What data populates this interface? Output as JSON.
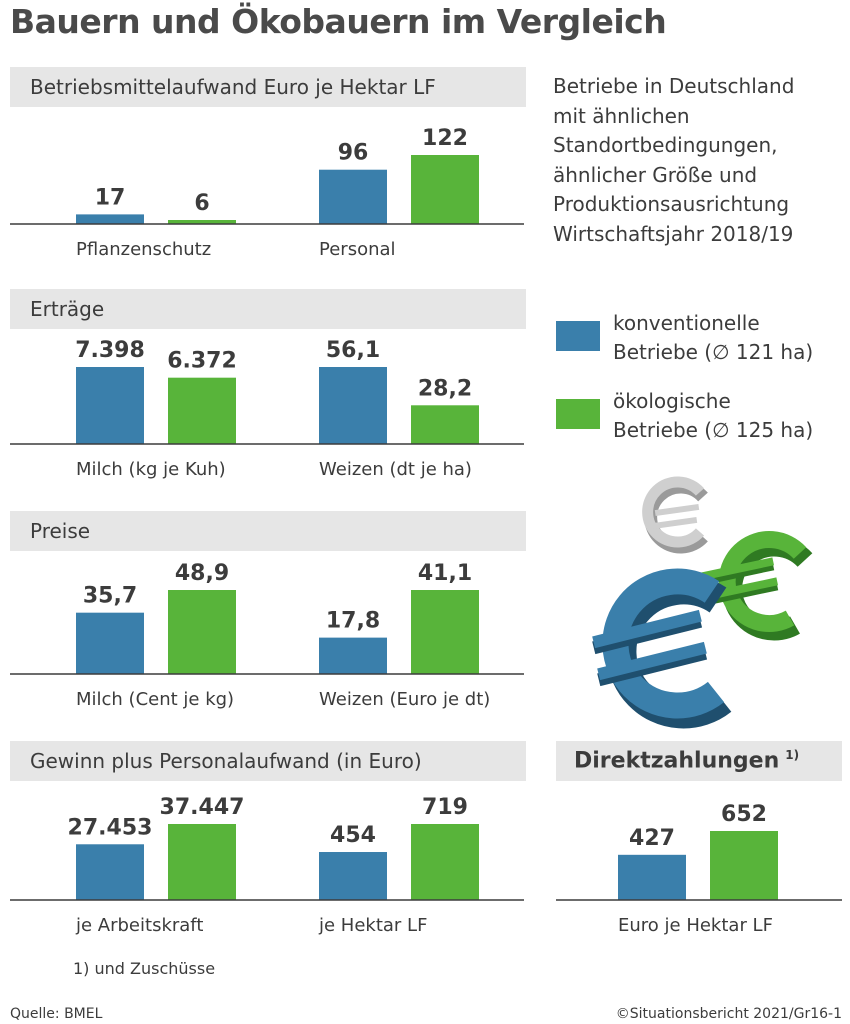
{
  "title": "Bauern und Ökobauern im Vergleich",
  "info_lines": [
    "Betriebe in Deutschland",
    "mit ähnlichen",
    "Standortbedingungen,",
    "ähnlicher Größe und",
    "Produktionsausrichtung",
    "Wirtschaftsjahr 2018/19"
  ],
  "legend": [
    {
      "label_line1": "konventionelle",
      "label_line2": "Betriebe (∅ 121 ha)",
      "color": "#3a7fab"
    },
    {
      "label_line1": "ökologische",
      "label_line2": "Betriebe (∅ 125 ha)",
      "color": "#58b43a"
    }
  ],
  "colors": {
    "conventional": "#3a7fab",
    "organic": "#58b43a"
  },
  "direkt_title": "Direktzahlungen",
  "direkt_sup": "1)",
  "footnote": "1) und Zuschüsse",
  "source": "Quelle: BMEL",
  "copyright": "©Situationsbericht 2021/Gr16-1",
  "chart_data": [
    {
      "type": "bar",
      "title": "Betriebsmittelaufwand Euro je Hektar LF",
      "series_names": [
        "konventionelle Betriebe",
        "ökologische Betriebe"
      ],
      "groups": [
        {
          "category": "Pflanzenschutz",
          "values": [
            17,
            6
          ],
          "labels": [
            "17",
            "6"
          ]
        },
        {
          "category": "Personal",
          "values": [
            96,
            122
          ],
          "labels": [
            "96",
            "122"
          ]
        }
      ]
    },
    {
      "type": "bar",
      "title": "Erträge",
      "series_names": [
        "konventionelle Betriebe",
        "ökologische Betriebe"
      ],
      "groups": [
        {
          "category": "Milch (kg je Kuh)",
          "values": [
            7398,
            6372
          ],
          "labels": [
            "7.398",
            "6.372"
          ]
        },
        {
          "category": "Weizen (dt je ha)",
          "values": [
            56.1,
            28.2
          ],
          "labels": [
            "56,1",
            "28,2"
          ]
        }
      ]
    },
    {
      "type": "bar",
      "title": "Preise",
      "series_names": [
        "konventionelle Betriebe",
        "ökologische Betriebe"
      ],
      "groups": [
        {
          "category": "Milch (Cent je kg)",
          "values": [
            35.7,
            48.9
          ],
          "labels": [
            "35,7",
            "48,9"
          ]
        },
        {
          "category": "Weizen (Euro je dt)",
          "values": [
            17.8,
            41.1
          ],
          "labels": [
            "17,8",
            "41,1"
          ]
        }
      ]
    },
    {
      "type": "bar",
      "title": "Gewinn plus Personalaufwand (in Euro)",
      "series_names": [
        "konventionelle Betriebe",
        "ökologische Betriebe"
      ],
      "groups": [
        {
          "category": "je Arbeitskraft",
          "values": [
            27453,
            37447
          ],
          "labels": [
            "27.453",
            "37.447"
          ]
        },
        {
          "category": "je Hektar LF",
          "values": [
            454,
            719
          ],
          "labels": [
            "454",
            "719"
          ]
        }
      ]
    },
    {
      "type": "bar",
      "title": "Direktzahlungen 1)",
      "series_names": [
        "konventionelle Betriebe",
        "ökologische Betriebe"
      ],
      "groups": [
        {
          "category": "Euro je Hektar LF",
          "values": [
            427,
            652
          ],
          "labels": [
            "427",
            "652"
          ]
        }
      ]
    }
  ]
}
